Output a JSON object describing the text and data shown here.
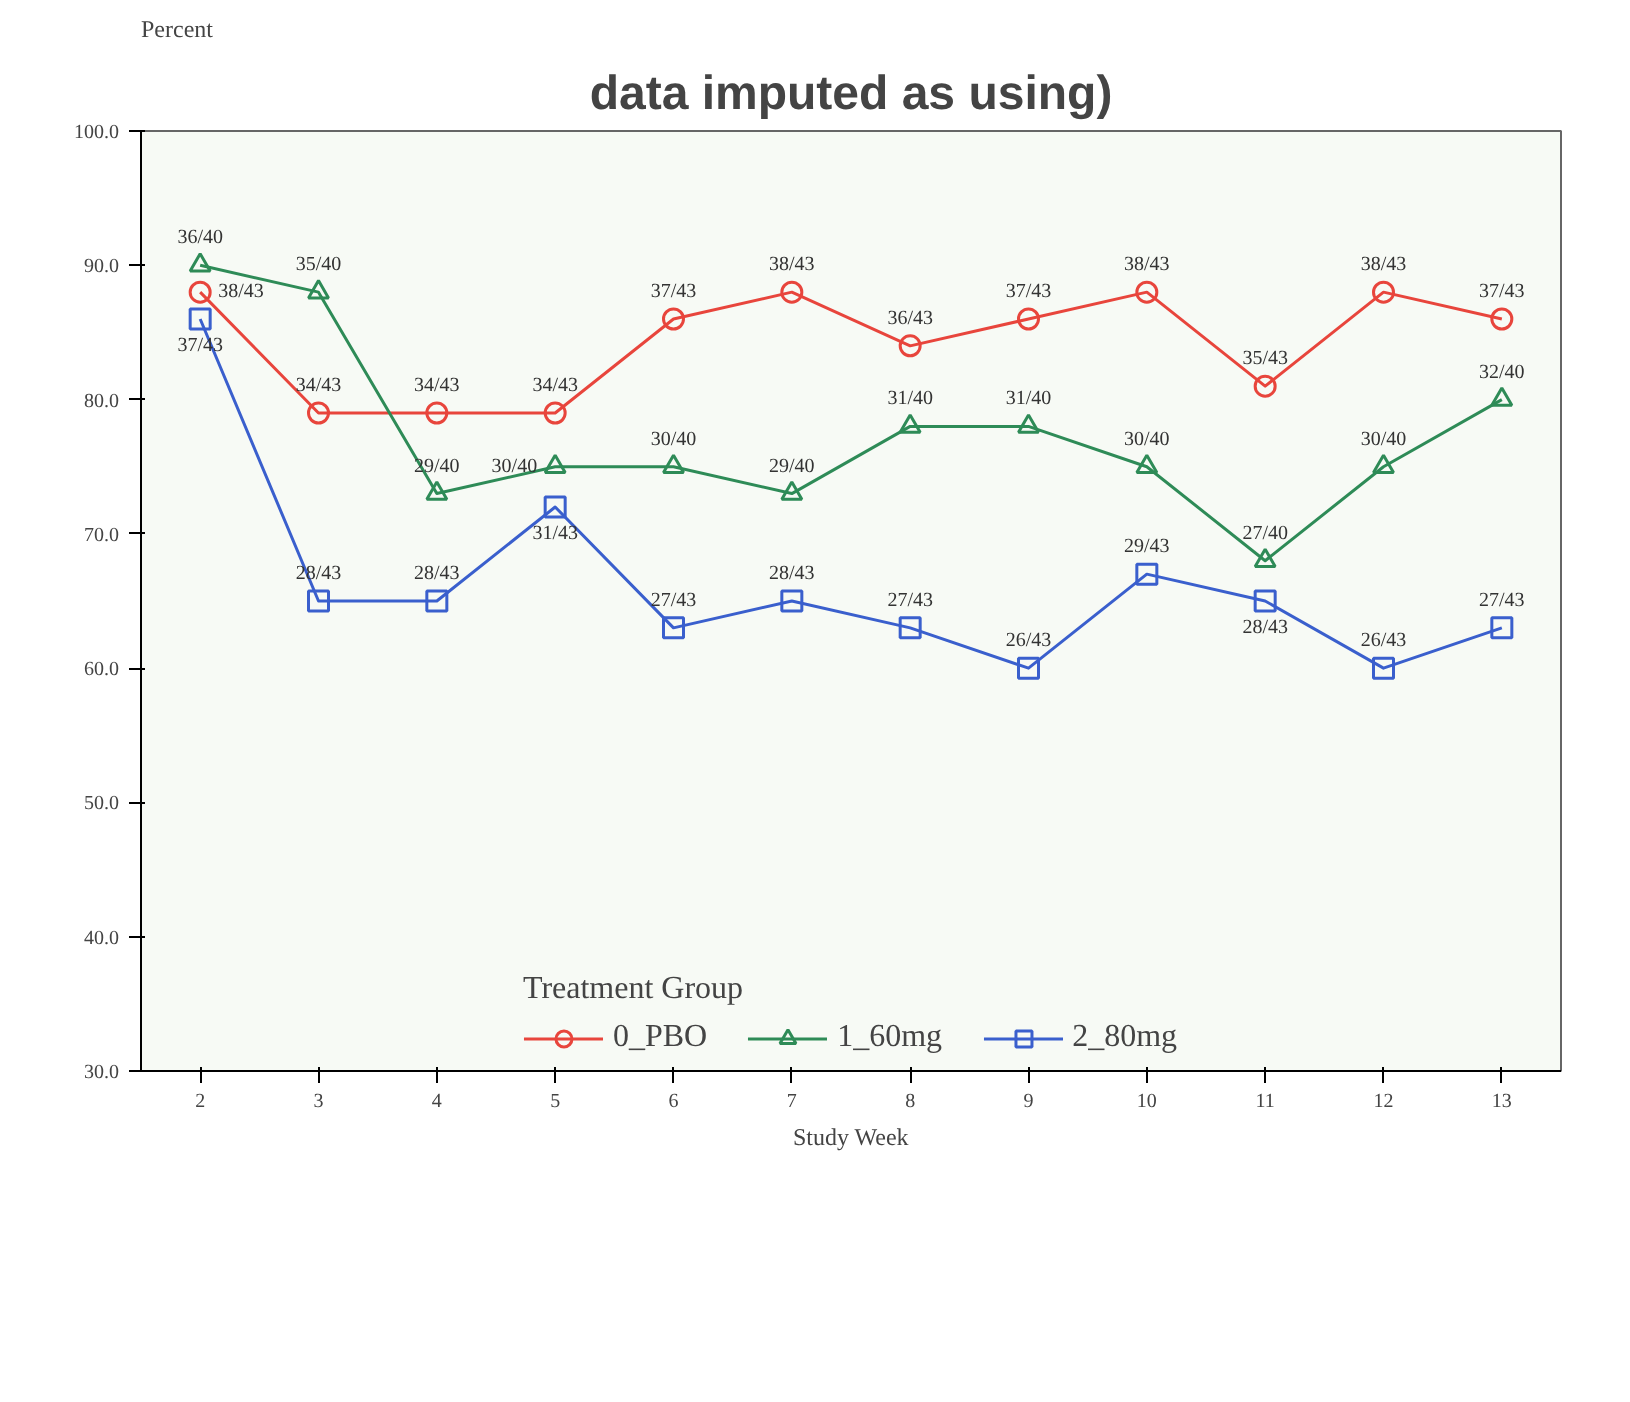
{
  "chart_data": {
    "type": "line",
    "title": "data imputed as using)",
    "xlabel": "Study Week",
    "ylabel": "Percent",
    "legend_title": "Treatment Group",
    "x": [
      2,
      3,
      4,
      5,
      6,
      7,
      8,
      9,
      10,
      11,
      12,
      13
    ],
    "series": [
      {
        "name": "0_PBO",
        "color": "#e8453c",
        "marker": "circle",
        "values": [
          88,
          79,
          79,
          79,
          86,
          88,
          84,
          86,
          88,
          81,
          88,
          86
        ],
        "value_labels": [
          "38/43",
          "34/43",
          "34/43",
          "34/43",
          "37/43",
          "38/43",
          "36/43",
          "37/43",
          "38/43",
          "35/43",
          "38/43",
          "37/43"
        ]
      },
      {
        "name": "1_60mg",
        "color": "#2e8b57",
        "marker": "triangle",
        "values": [
          90,
          88,
          73,
          75,
          75,
          73,
          78,
          78,
          75,
          68,
          75,
          80
        ],
        "value_labels": [
          "36/40",
          "35/40",
          "29/40",
          "30/40",
          "30/40",
          "29/40",
          "31/40",
          "31/40",
          "30/40",
          "27/40",
          "30/40",
          "32/40"
        ]
      },
      {
        "name": "2_80mg",
        "color": "#3a5fcd",
        "marker": "square",
        "values": [
          86,
          65,
          65,
          72,
          63,
          65,
          63,
          60,
          67,
          65,
          60,
          63
        ],
        "value_labels": [
          "37/43",
          "28/43",
          "28/43",
          "31/43",
          "27/43",
          "28/43",
          "27/43",
          "26/43",
          "29/43",
          "28/43",
          "26/43",
          "27/43"
        ]
      }
    ],
    "xlim": [
      1.5,
      13.5
    ],
    "xticks": [
      2,
      3,
      4,
      5,
      6,
      7,
      8,
      9,
      10,
      11,
      12,
      13
    ],
    "ylim": [
      30,
      100
    ],
    "yticks": [
      {
        "value": 30,
        "label": "30.0"
      },
      {
        "value": 40,
        "label": "40.0"
      },
      {
        "value": 50,
        "label": "50.0"
      },
      {
        "value": 60,
        "label": "60.0"
      },
      {
        "value": 70,
        "label": "70.0"
      },
      {
        "value": 80,
        "label": "80.0"
      },
      {
        "value": 90,
        "label": "90.0"
      },
      {
        "value": 100,
        "label": "100.0"
      }
    ],
    "grid": false,
    "legend": "bottom",
    "line_style": "solid"
  }
}
